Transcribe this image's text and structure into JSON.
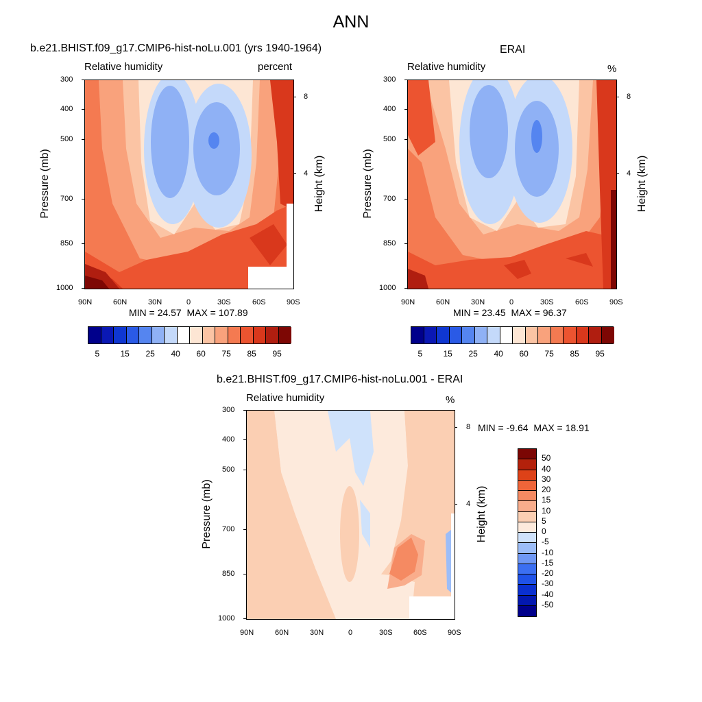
{
  "title": "ANN",
  "colors": {
    "abs_scale": [
      "#00008b",
      "#0a18b4",
      "#0f37d1",
      "#2a5ae6",
      "#5585f0",
      "#8fb1f5",
      "#c4d9fa",
      "#ffffff",
      "#fde6d4",
      "#fbc4a4",
      "#f9a27c",
      "#f47a51",
      "#ec5430",
      "#d9381c",
      "#b01e10",
      "#7d0704"
    ],
    "diff_scale": [
      "#00008b",
      "#0318b0",
      "#0a30d0",
      "#1f52e8",
      "#3b6ff2",
      "#6f98f5",
      "#9cbdf8",
      "#cfe2fb",
      "#fdeadc",
      "#fbcfb3",
      "#f9ad8c",
      "#f58a62",
      "#ef6539",
      "#dd4218",
      "#b3210b",
      "#7b0604"
    ]
  },
  "panels": [
    {
      "title": "b.e21.BHIST.f09_g17.CMIP6-hist-noLu.001 (yrs 1940-1964)",
      "variable": "Relative humidity",
      "units": "percent",
      "ylabel": "Pressure (mb)",
      "y2label": "Height (km)",
      "yticks": [
        "300",
        "400",
        "500",
        "700",
        "850",
        "1000"
      ],
      "y2ticks": [
        "8",
        "4"
      ],
      "xticks": [
        "90N",
        "60N",
        "30N",
        "0",
        "30S",
        "60S",
        "90S"
      ],
      "min_label": "MIN =",
      "min_value": "24.57",
      "max_label": "MAX =",
      "max_value": "107.89"
    },
    {
      "title": "ERAI",
      "variable": "Relative humidity",
      "units": "%",
      "ylabel": "Pressure (mb)",
      "y2label": "Height (km)",
      "yticks": [
        "300",
        "400",
        "500",
        "700",
        "850",
        "1000"
      ],
      "y2ticks": [
        "8",
        "4"
      ],
      "xticks": [
        "90N",
        "60N",
        "30N",
        "0",
        "30S",
        "60S",
        "90S"
      ],
      "min_label": "MIN =",
      "min_value": "23.45",
      "max_label": "MAX =",
      "max_value": "96.37"
    },
    {
      "title": "b.e21.BHIST.f09_g17.CMIP6-hist-noLu.001 - ERAI",
      "variable": "Relative humidity",
      "units": "%",
      "ylabel": "Pressure (mb)",
      "y2label": "Height (km)",
      "yticks": [
        "300",
        "400",
        "500",
        "700",
        "850",
        "1000"
      ],
      "y2ticks": [
        "8",
        "4"
      ],
      "xticks": [
        "90N",
        "60N",
        "30N",
        "0",
        "30S",
        "60S",
        "90S"
      ],
      "min_label": "MIN =",
      "min_value": "-9.64",
      "max_label": "MAX =",
      "max_value": "18.91"
    }
  ],
  "colorbar_abs": {
    "labels": [
      "5",
      "15",
      "25",
      "40",
      "60",
      "75",
      "85",
      "95"
    ]
  },
  "colorbar_diff": {
    "labels": [
      "50",
      "40",
      "30",
      "20",
      "15",
      "10",
      "5",
      "0",
      "-5",
      "-10",
      "-15",
      "-20",
      "-30",
      "-40",
      "-50"
    ]
  },
  "chart_data": [
    {
      "type": "heatmap",
      "title": "b.e21.BHIST.f09_g17.CMIP6-hist-noLu.001 (yrs 1940-1964)",
      "variable": "Relative humidity",
      "units": "percent",
      "xlabel": "",
      "ylabel": "Pressure (mb)",
      "y2label": "Height (km)",
      "x": [
        "90N",
        "60N",
        "30N",
        "0",
        "30S",
        "60S",
        "90S"
      ],
      "y": [
        300,
        400,
        500,
        700,
        850,
        1000
      ],
      "values": [
        [
          78,
          72,
          44,
          45,
          37,
          60,
          85
        ],
        [
          80,
          70,
          36,
          50,
          30,
          58,
          88
        ],
        [
          82,
          68,
          30,
          52,
          26,
          55,
          90
        ],
        [
          86,
          72,
          40,
          60,
          35,
          65,
          85
        ],
        [
          92,
          80,
          64,
          70,
          68,
          88,
          93
        ],
        [
          98,
          86,
          80,
          80,
          84,
          86,
          88
        ]
      ],
      "min": 24.57,
      "max": 107.89,
      "colorbar_levels": [
        5,
        10,
        15,
        20,
        25,
        30,
        40,
        50,
        60,
        70,
        75,
        80,
        85,
        90,
        95
      ]
    },
    {
      "type": "heatmap",
      "title": "ERAI",
      "variable": "Relative humidity",
      "units": "%",
      "xlabel": "",
      "ylabel": "Pressure (mb)",
      "y2label": "Height (km)",
      "x": [
        "90N",
        "60N",
        "30N",
        "0",
        "30S",
        "60S",
        "90S"
      ],
      "y": [
        300,
        400,
        500,
        700,
        850,
        1000
      ],
      "values": [
        [
          76,
          64,
          44,
          48,
          42,
          60,
          82
        ],
        [
          84,
          68,
          38,
          48,
          34,
          58,
          82
        ],
        [
          80,
          66,
          35,
          50,
          30,
          56,
          84
        ],
        [
          80,
          68,
          42,
          60,
          38,
          62,
          88
        ],
        [
          88,
          76,
          66,
          70,
          70,
          78,
          92
        ],
        [
          92,
          80,
          82,
          78,
          84,
          82,
          95
        ]
      ],
      "min": 23.45,
      "max": 96.37,
      "colorbar_levels": [
        5,
        10,
        15,
        20,
        25,
        30,
        40,
        50,
        60,
        70,
        75,
        80,
        85,
        90,
        95
      ]
    },
    {
      "type": "heatmap",
      "title": "b.e21.BHIST.f09_g17.CMIP6-hist-noLu.001 - ERAI",
      "variable": "Relative humidity",
      "units": "%",
      "xlabel": "",
      "ylabel": "Pressure (mb)",
      "y2label": "Height (km)",
      "x": [
        "90N",
        "60N",
        "30N",
        "0",
        "30S",
        "60S",
        "90S"
      ],
      "y": [
        300,
        400,
        500,
        700,
        850,
        1000
      ],
      "values": [
        [
          4,
          5,
          1,
          -3,
          1,
          5,
          5
        ],
        [
          4,
          6,
          2,
          -2,
          0,
          6,
          4
        ],
        [
          6,
          5,
          3,
          -1,
          -1,
          7,
          6
        ],
        [
          5,
          6,
          4,
          2,
          3,
          10,
          2
        ],
        [
          6,
          5,
          2,
          1,
          8,
          16,
          -2
        ],
        [
          8,
          6,
          3,
          1,
          2,
          4,
          -4
        ]
      ],
      "min": -9.64,
      "max": 18.91,
      "colorbar_levels": [
        -50,
        -40,
        -30,
        -20,
        -15,
        -10,
        -5,
        0,
        5,
        10,
        15,
        20,
        30,
        40,
        50
      ]
    }
  ]
}
